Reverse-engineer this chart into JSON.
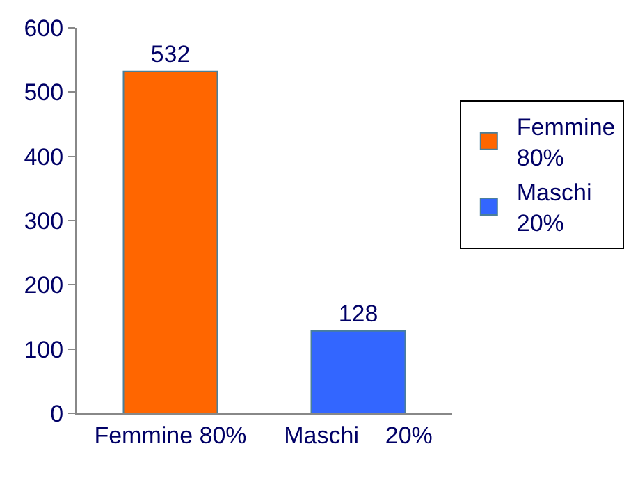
{
  "chart_data": {
    "type": "bar",
    "categories": [
      "Femmine 80%",
      "Maschi    20%"
    ],
    "series": [
      {
        "name": "Femmine 80%",
        "color": "#ff6600",
        "values": [
          532,
          null
        ]
      },
      {
        "name": "Maschi 20%",
        "color": "#3366ff",
        "values": [
          null,
          128
        ]
      }
    ],
    "ylim": [
      0,
      600
    ],
    "yticks": [
      0,
      100,
      200,
      300,
      400,
      500,
      600
    ],
    "grid": false,
    "legend": "right",
    "data_labels": true
  }
}
